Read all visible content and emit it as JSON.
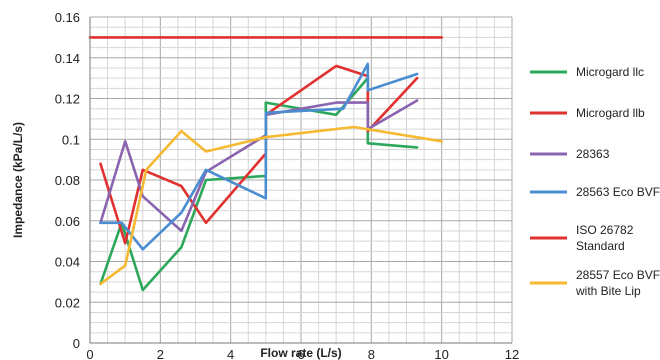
{
  "chart_data": {
    "type": "line",
    "xlabel": "Flow rate (L/s)",
    "ylabel": "Impedance (kPa/L/s)",
    "xlim": [
      0,
      12
    ],
    "ylim": [
      0,
      0.16
    ],
    "x_ticks": [
      "0",
      "2",
      "4",
      "6",
      "8",
      "10",
      "12"
    ],
    "y_ticks": [
      "0",
      "0.02",
      "0.04",
      "0.06",
      "0.08",
      "0.1",
      "0.12",
      "0.14",
      "0.16"
    ],
    "grid": true,
    "legend_position": "right",
    "series": [
      {
        "name": "Microgard llc",
        "color": "#2ca85a",
        "points": [
          [
            0.3,
            0.029
          ],
          [
            0.9,
            0.059
          ],
          [
            1.5,
            0.026
          ],
          [
            2.6,
            0.047
          ],
          [
            3.3,
            0.08
          ],
          [
            5.0,
            0.082
          ],
          [
            5.0,
            0.118
          ],
          [
            7.0,
            0.112
          ],
          [
            7.9,
            0.13
          ],
          [
            7.9,
            0.098
          ],
          [
            9.3,
            0.096
          ]
        ]
      },
      {
        "name": "Microgard llb",
        "color": "#e03030",
        "points": [
          [
            0.3,
            0.088
          ],
          [
            1.0,
            0.049
          ],
          [
            1.5,
            0.085
          ],
          [
            2.6,
            0.077
          ],
          [
            3.3,
            0.059
          ],
          [
            5.0,
            0.093
          ],
          [
            5.0,
            0.112
          ],
          [
            7.0,
            0.136
          ],
          [
            7.9,
            0.131
          ],
          [
            7.9,
            0.104
          ],
          [
            9.3,
            0.13
          ]
        ]
      },
      {
        "name": "28363",
        "color": "#8b64b0",
        "points": [
          [
            0.3,
            0.059
          ],
          [
            1.0,
            0.099
          ],
          [
            1.5,
            0.072
          ],
          [
            2.6,
            0.055
          ],
          [
            3.3,
            0.084
          ],
          [
            5.0,
            0.102
          ],
          [
            5.0,
            0.112
          ],
          [
            7.0,
            0.118
          ],
          [
            7.9,
            0.118
          ],
          [
            7.9,
            0.105
          ],
          [
            9.3,
            0.119
          ]
        ]
      },
      {
        "name": "28563 Eco BVF",
        "color": "#4a8dd0",
        "points": [
          [
            0.3,
            0.059
          ],
          [
            0.9,
            0.059
          ],
          [
            1.5,
            0.046
          ],
          [
            2.6,
            0.064
          ],
          [
            3.3,
            0.085
          ],
          [
            5.0,
            0.071
          ],
          [
            5.0,
            0.113
          ],
          [
            7.2,
            0.115
          ],
          [
            7.9,
            0.137
          ],
          [
            7.9,
            0.124
          ],
          [
            9.3,
            0.132
          ]
        ]
      },
      {
        "name": "ISO 26782 Standard",
        "color": "#e03030",
        "points": [
          [
            0,
            0.15
          ],
          [
            10,
            0.15
          ]
        ]
      },
      {
        "name": "28557 Eco BVF with Bite Lip",
        "color": "#f5b932",
        "points": [
          [
            0.3,
            0.029
          ],
          [
            1.0,
            0.038
          ],
          [
            1.6,
            0.085
          ],
          [
            2.6,
            0.104
          ],
          [
            3.3,
            0.094
          ],
          [
            5.0,
            0.101
          ],
          [
            7.5,
            0.106
          ],
          [
            10.0,
            0.099
          ]
        ]
      }
    ]
  },
  "legend": {
    "items": [
      {
        "lines": [
          "Microgard llc"
        ],
        "color": "#2ca85a"
      },
      {
        "lines": [
          "Microgard llb"
        ],
        "color": "#e03030"
      },
      {
        "lines": [
          "28363"
        ],
        "color": "#8b64b0"
      },
      {
        "lines": [
          "28563 Eco BVF"
        ],
        "color": "#4a8dd0"
      },
      {
        "lines": [
          "ISO 26782",
          "Standard"
        ],
        "color": "#e03030"
      },
      {
        "lines": [
          "28557 Eco BVF",
          "with Bite Lip"
        ],
        "color": "#f5b932"
      }
    ]
  }
}
